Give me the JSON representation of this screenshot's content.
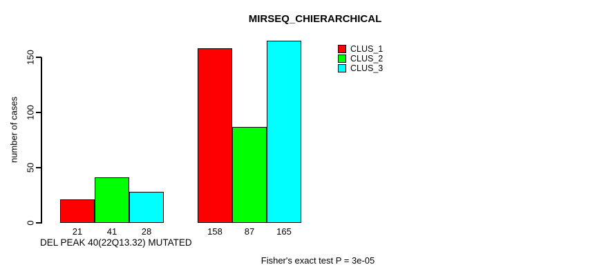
{
  "chart_data": {
    "type": "bar",
    "title": "MIRSEQ_CHIERARCHICAL",
    "ylabel": "number of cases",
    "xlabel": "DEL PEAK 40(22Q13.32) MUTATED",
    "categories": [
      "",
      ""
    ],
    "series": [
      {
        "name": "CLUS_1",
        "color": "#FF0000",
        "values": [
          21,
          158
        ]
      },
      {
        "name": "CLUS_2",
        "color": "#00FF00",
        "values": [
          41,
          87
        ]
      },
      {
        "name": "CLUS_3",
        "color": "#00FFFF",
        "values": [
          28,
          165
        ]
      }
    ],
    "bar_value_labels": [
      [
        21,
        41,
        28
      ],
      [
        158,
        87,
        165
      ]
    ],
    "yticks": [
      0,
      50,
      100,
      150
    ],
    "ylim": [
      0,
      165
    ],
    "grid": false,
    "legend_position": "top-right",
    "legend_entries": [
      "CLUS_1",
      "CLUS_2",
      "CLUS_3"
    ],
    "annotation": "Fisher's exact test P = 3e-05",
    "axis_color": "#000000",
    "background_color": "#FFFFFF"
  }
}
